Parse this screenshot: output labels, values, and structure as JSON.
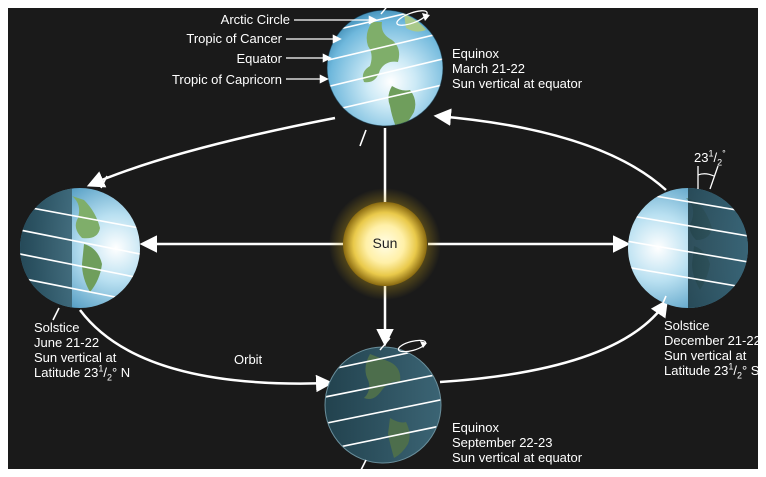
{
  "colors": {
    "background": "#1a1a1a",
    "frame": "#ffffff",
    "orbit": "#ffffff",
    "sun_core": "#fff7c2",
    "sun_glow": "#c9a41a",
    "ocean_lit": "#9cd4ee",
    "ocean_dark": "#2b4a57",
    "land": "#7fae6a"
  },
  "sun": {
    "label": "Sun"
  },
  "orbit": {
    "label": "Orbit"
  },
  "latitude_lines": {
    "arctic": "Arctic Circle",
    "cancer": "Tropic of Cancer",
    "equator": "Equator",
    "capricorn": "Tropic of Capricorn"
  },
  "tilt": {
    "whole": "23",
    "num": "1",
    "den": "2",
    "unit": "°"
  },
  "positions": {
    "march": {
      "title": "Equinox",
      "date": "March 21-22",
      "note": "Sun vertical at equator"
    },
    "june": {
      "title": "Solstice",
      "date": "June 21-22",
      "note": "Sun vertical at",
      "lat_prefix": "Latitude 23",
      "lat_num": "1",
      "lat_den": "2",
      "lat_suffix": "° N"
    },
    "september": {
      "title": "Equinox",
      "date": "September 22-23",
      "note": "Sun vertical at equator"
    },
    "december": {
      "title": "Solstice",
      "date": "December 21-22",
      "note": "Sun vertical at",
      "lat_prefix": "Latitude 23",
      "lat_num": "1",
      "lat_den": "2",
      "lat_suffix": "° S"
    }
  }
}
